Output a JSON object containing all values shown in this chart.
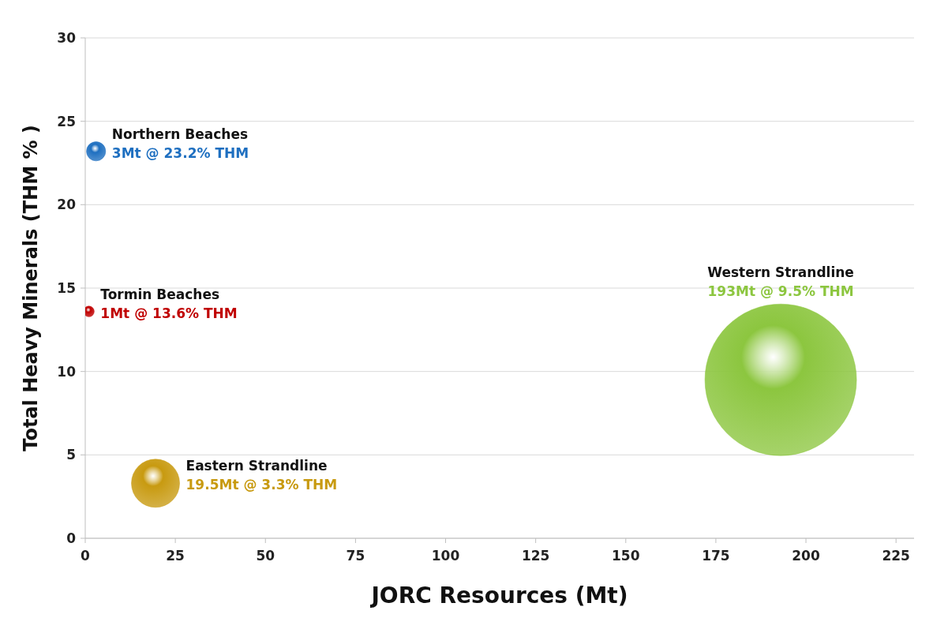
{
  "chart_data": {
    "type": "bubble",
    "xlabel": "JORC Resources (Mt)",
    "ylabel": "Total Heavy Minerals (THM % )",
    "xlim": [
      0,
      230
    ],
    "xticks": [
      0,
      25,
      50,
      75,
      100,
      125,
      150,
      175,
      200,
      225
    ],
    "ylim": [
      0,
      30
    ],
    "yticks": [
      0,
      5,
      10,
      15,
      20,
      25,
      30
    ],
    "grid": "y",
    "legend": false,
    "series": [
      {
        "name": "Northern Beaches",
        "color": "#1e6fc0",
        "x": [
          3
        ],
        "values": [
          23.2
        ],
        "sizes": [
          0.016
        ],
        "value_labels": [
          "3Mt @ 23.2% THM"
        ]
      },
      {
        "name": "Tormin Beaches",
        "color": "#c00000",
        "x": [
          1
        ],
        "values": [
          13.6
        ],
        "sizes": [
          0.005
        ],
        "value_labels": [
          "1Mt @ 13.6% THM"
        ]
      },
      {
        "name": "Eastern Strandline",
        "color": "#c89a10",
        "x": [
          19.5
        ],
        "values": [
          3.3
        ],
        "sizes": [
          0.101
        ],
        "value_labels": [
          "19.5Mt @ 3.3% THM"
        ]
      },
      {
        "name": "Western Strandline",
        "color": "#8cc63f",
        "x": [
          193
        ],
        "values": [
          9.5
        ],
        "sizes": [
          1
        ],
        "value_labels": [
          "193Mt @ 9.5% THM"
        ]
      }
    ]
  }
}
